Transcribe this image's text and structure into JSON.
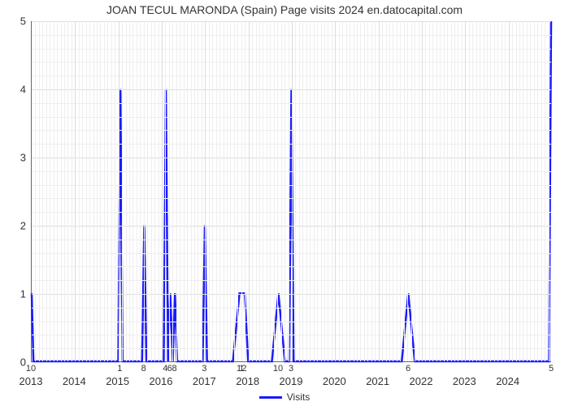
{
  "chart": {
    "type": "line",
    "title": "JOAN TECUL MARONDA (Spain) Page visits 2024 en.datocapital.com",
    "title_fontsize": 14,
    "background_color": "#ffffff",
    "grid_color": "#dcdcdc",
    "sub_grid_color": "#eeeeee",
    "axis_color": "#666666",
    "line_color": "#1a1aff",
    "line_width": 2.5,
    "ylim": [
      0,
      5
    ],
    "ytick_step": 1,
    "xlim_years": [
      2013,
      2025
    ],
    "x_major_ticks": [
      2013,
      2014,
      2015,
      2016,
      2017,
      2018,
      2019,
      2020,
      2021,
      2022,
      2023,
      2024
    ],
    "legend": {
      "label": "Visits",
      "color": "#1a1aff"
    },
    "data_points": [
      {
        "x": 0.0,
        "y": 1,
        "label": "10"
      },
      {
        "x": 0.04,
        "y": 0,
        "label": ""
      },
      {
        "x": 2.0,
        "y": 0,
        "label": ""
      },
      {
        "x": 2.05,
        "y": 4,
        "label": "1"
      },
      {
        "x": 2.1,
        "y": 0,
        "label": ""
      },
      {
        "x": 2.55,
        "y": 0,
        "label": ""
      },
      {
        "x": 2.6,
        "y": 2,
        "label": "8"
      },
      {
        "x": 2.65,
        "y": 0,
        "label": ""
      },
      {
        "x": 3.05,
        "y": 0,
        "label": ""
      },
      {
        "x": 3.1,
        "y": 4,
        "label": "4"
      },
      {
        "x": 3.15,
        "y": 0,
        "label": ""
      },
      {
        "x": 3.2,
        "y": 1,
        "label": "6"
      },
      {
        "x": 3.26,
        "y": 0,
        "label": ""
      },
      {
        "x": 3.31,
        "y": 1,
        "label": "8"
      },
      {
        "x": 3.36,
        "y": 0,
        "label": ""
      },
      {
        "x": 3.95,
        "y": 0,
        "label": ""
      },
      {
        "x": 4.0,
        "y": 2,
        "label": "3"
      },
      {
        "x": 4.05,
        "y": 0,
        "label": ""
      },
      {
        "x": 4.65,
        "y": 0,
        "label": ""
      },
      {
        "x": 4.8,
        "y": 1,
        "label": "1"
      },
      {
        "x": 4.86,
        "y": 1,
        "label": "1"
      },
      {
        "x": 4.92,
        "y": 1,
        "label": "2"
      },
      {
        "x": 5.0,
        "y": 0,
        "label": ""
      },
      {
        "x": 5.55,
        "y": 0,
        "label": ""
      },
      {
        "x": 5.7,
        "y": 1,
        "label": "10"
      },
      {
        "x": 5.85,
        "y": 0,
        "label": ""
      },
      {
        "x": 5.95,
        "y": 0,
        "label": ""
      },
      {
        "x": 6.0,
        "y": 4,
        "label": "3"
      },
      {
        "x": 6.05,
        "y": 0,
        "label": ""
      },
      {
        "x": 8.55,
        "y": 0,
        "label": ""
      },
      {
        "x": 8.7,
        "y": 1,
        "label": "6"
      },
      {
        "x": 8.85,
        "y": 0,
        "label": ""
      },
      {
        "x": 11.95,
        "y": 0,
        "label": ""
      },
      {
        "x": 12.0,
        "y": 5,
        "label": "5"
      }
    ]
  }
}
